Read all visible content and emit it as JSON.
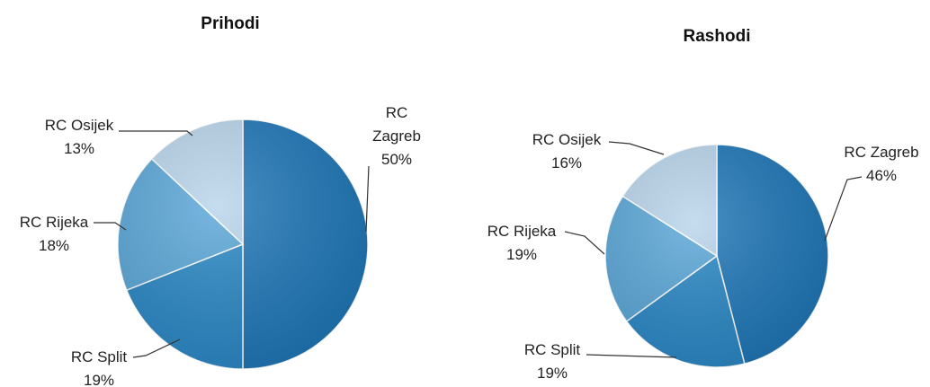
{
  "chart_data": [
    {
      "type": "pie",
      "title": "Prihodi",
      "categories": [
        "RC Zagreb",
        "RC Split",
        "RC Rijeka",
        "RC Osijek"
      ],
      "values": [
        50,
        19,
        18,
        13
      ],
      "value_labels": [
        "50%",
        "19%",
        "18%",
        "13%"
      ],
      "colors": [
        "#1f77b8",
        "#2a88c6",
        "#5aa7d8",
        "#b9d5eb"
      ]
    },
    {
      "type": "pie",
      "title": "Rashodi",
      "categories": [
        "RC Zagreb",
        "RC Split",
        "RC Rijeka",
        "RC Osijek"
      ],
      "values": [
        46,
        19,
        19,
        16
      ],
      "value_labels": [
        "46%",
        "19%",
        "19%",
        "16%"
      ],
      "colors": [
        "#1f77b8",
        "#2a88c6",
        "#5aa7d8",
        "#b9d5eb"
      ]
    }
  ]
}
